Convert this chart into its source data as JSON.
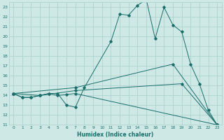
{
  "xlabel": "Humidex (Indice chaleur)",
  "xlim": [
    -0.5,
    23.5
  ],
  "ylim": [
    11,
    23.5
  ],
  "yticks": [
    11,
    12,
    13,
    14,
    15,
    16,
    17,
    18,
    19,
    20,
    21,
    22,
    23
  ],
  "xticks": [
    0,
    1,
    2,
    3,
    4,
    5,
    6,
    7,
    8,
    9,
    10,
    11,
    12,
    13,
    14,
    15,
    16,
    17,
    18,
    19,
    20,
    21,
    22,
    23
  ],
  "bg_color": "#cde8e5",
  "line_color": "#1a6e6a",
  "grid_color": "#aacfcc",
  "lines": [
    {
      "x": [
        0,
        1,
        2,
        3,
        4,
        5,
        6,
        7,
        8,
        11,
        12,
        13,
        14,
        15,
        16,
        17,
        18,
        19,
        20,
        21,
        22,
        23
      ],
      "y": [
        14.2,
        13.8,
        13.8,
        14.0,
        14.2,
        14.2,
        13.0,
        12.8,
        14.8,
        19.5,
        22.3,
        22.2,
        23.2,
        23.8,
        19.8,
        23.0,
        21.2,
        20.5,
        17.2,
        15.2,
        12.5,
        11.0
      ]
    },
    {
      "x": [
        0,
        1,
        2,
        3,
        4,
        5,
        6,
        7,
        23
      ],
      "y": [
        14.2,
        13.8,
        13.8,
        14.0,
        14.2,
        14.0,
        14.1,
        14.2,
        11.0
      ]
    },
    {
      "x": [
        0,
        3,
        7,
        19,
        23
      ],
      "y": [
        14.2,
        14.0,
        14.5,
        15.2,
        11.0
      ]
    },
    {
      "x": [
        0,
        7,
        18,
        23
      ],
      "y": [
        14.2,
        14.8,
        17.2,
        11.0
      ]
    }
  ]
}
